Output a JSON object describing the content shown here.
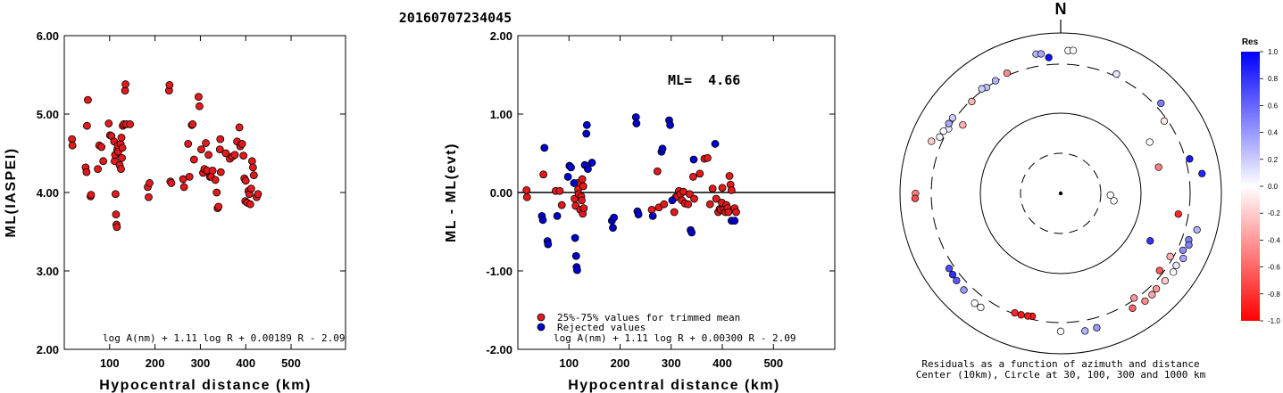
{
  "title": "20160707234045",
  "chart_data": [
    {
      "type": "scatter",
      "xlabel": "Hypocentral distance (km)",
      "ylabel": "ML(IASPEI)",
      "xlim": [
        0,
        620
      ],
      "ylim": [
        2.0,
        6.0
      ],
      "x_ticks": [
        "100",
        "200",
        "300",
        "400",
        "500"
      ],
      "x_tick_values": [
        100,
        200,
        300,
        400,
        500
      ],
      "y_ticks": [
        "2.00",
        "3.00",
        "4.00",
        "5.00",
        "6.00"
      ],
      "y_tick_values": [
        2,
        3,
        4,
        5,
        6
      ],
      "formula": "log A(nm) + 1.11 log R + 0.00189 R - 2.09",
      "marker_color": "#e31a1c",
      "points": [
        [
          17,
          4.68
        ],
        [
          18,
          4.6
        ],
        [
          47,
          4.32
        ],
        [
          49,
          4.26
        ],
        [
          50,
          4.85
        ],
        [
          52,
          5.18
        ],
        [
          58,
          3.95
        ],
        [
          59,
          3.97
        ],
        [
          74,
          4.3
        ],
        [
          77,
          4.6
        ],
        [
          82,
          4.58
        ],
        [
          86,
          4.4
        ],
        [
          98,
          4.88
        ],
        [
          101,
          4.73
        ],
        [
          104,
          4.72
        ],
        [
          110,
          4.65
        ],
        [
          111,
          4.4
        ],
        [
          112,
          4.48
        ],
        [
          113,
          3.98
        ],
        [
          114,
          3.72
        ],
        [
          115,
          3.59
        ],
        [
          116,
          3.56
        ],
        [
          117,
          4.55
        ],
        [
          118,
          4.6
        ],
        [
          119,
          4.52
        ],
        [
          122,
          4.35
        ],
        [
          124,
          4.62
        ],
        [
          125,
          4.3
        ],
        [
          126,
          4.7
        ],
        [
          127,
          4.44
        ],
        [
          128,
          4.57
        ],
        [
          129,
          4.85
        ],
        [
          131,
          4.87
        ],
        [
          134,
          5.3
        ],
        [
          135,
          5.38
        ],
        [
          137,
          4.87
        ],
        [
          145,
          4.87
        ],
        [
          184,
          4.07
        ],
        [
          186,
          3.94
        ],
        [
          188,
          4.12
        ],
        [
          231,
          5.3
        ],
        [
          232,
          5.37
        ],
        [
          234,
          4.14
        ],
        [
          236,
          4.12
        ],
        [
          262,
          4.17
        ],
        [
          264,
          4.07
        ],
        [
          273,
          4.62
        ],
        [
          276,
          4.2
        ],
        [
          281,
          4.86
        ],
        [
          283,
          4.87
        ],
        [
          286,
          4.42
        ],
        [
          296,
          5.22
        ],
        [
          298,
          5.1
        ],
        [
          302,
          4.55
        ],
        [
          306,
          4.25
        ],
        [
          309,
          4.3
        ],
        [
          312,
          4.63
        ],
        [
          315,
          4.28
        ],
        [
          318,
          4.48
        ],
        [
          321,
          4.2
        ],
        [
          324,
          4.2
        ],
        [
          327,
          4.28
        ],
        [
          333,
          4.16
        ],
        [
          336,
          4.0
        ],
        [
          338,
          3.8
        ],
        [
          340,
          3.82
        ],
        [
          343,
          4.55
        ],
        [
          344,
          4.68
        ],
        [
          345,
          4.26
        ],
        [
          356,
          4.5
        ],
        [
          365,
          4.43
        ],
        [
          371,
          4.46
        ],
        [
          376,
          4.48
        ],
        [
          381,
          4.65
        ],
        [
          386,
          4.83
        ],
        [
          388,
          4.59
        ],
        [
          392,
          4.62
        ],
        [
          395,
          4.47
        ],
        [
          397,
          4.18
        ],
        [
          399,
          3.89
        ],
        [
          400,
          4.15
        ],
        [
          403,
          3.87
        ],
        [
          406,
          4.02
        ],
        [
          408,
          3.98
        ],
        [
          410,
          3.85
        ],
        [
          412,
          4.05
        ],
        [
          414,
          4.4
        ],
        [
          416,
          4.32
        ],
        [
          418,
          4.22
        ],
        [
          424,
          3.94
        ],
        [
          427,
          3.98
        ]
      ]
    },
    {
      "type": "scatter",
      "xlabel": "Hypocentral distance (km)",
      "ylabel": "ML - ML(evt)",
      "xlim": [
        0,
        620
      ],
      "ylim": [
        -2.0,
        2.0
      ],
      "x_ticks": [
        "100",
        "200",
        "300",
        "400",
        "500"
      ],
      "x_tick_values": [
        100,
        200,
        300,
        400,
        500
      ],
      "y_ticks": [
        "-2.00",
        "-1.00",
        "0.00",
        "1.00",
        "2.00"
      ],
      "y_tick_values": [
        -2,
        -1,
        0,
        1,
        2
      ],
      "annotation": "ML=  4.66",
      "formula": "log A(nm) + 1.11 log R + 0.00300 R - 2.09",
      "legend": {
        "placement": "bottom-left",
        "entries": [
          {
            "label": "25%-75% values for trimmed mean",
            "color": "#e31a1c"
          },
          {
            "label": "Rejected values",
            "color": "#0000cc"
          }
        ]
      },
      "series": [
        {
          "name": "25%-75% values for trimmed mean",
          "color": "#e31a1c",
          "points": [
            [
              17,
              0.03
            ],
            [
              18,
              -0.06
            ],
            [
              50,
              0.23
            ],
            [
              74,
              0.02
            ],
            [
              82,
              0.02
            ],
            [
              86,
              -0.16
            ],
            [
              111,
              -0.08
            ],
            [
              113,
              -0.17
            ],
            [
              117,
              0.12
            ],
            [
              118,
              0.04
            ],
            [
              119,
              -0.02
            ],
            [
              122,
              -0.22
            ],
            [
              124,
              -0.05
            ],
            [
              125,
              -0.1
            ],
            [
              126,
              0.17
            ],
            [
              127,
              -0.27
            ],
            [
              128,
              0.08
            ],
            [
              129,
              -0.2
            ],
            [
              262,
              -0.22
            ],
            [
              273,
              0.27
            ],
            [
              276,
              -0.19
            ],
            [
              286,
              -0.15
            ],
            [
              306,
              -0.25
            ],
            [
              309,
              -0.06
            ],
            [
              312,
              -0.05
            ],
            [
              315,
              0.02
            ],
            [
              318,
              -0.02
            ],
            [
              321,
              -0.1
            ],
            [
              324,
              0.01
            ],
            [
              327,
              -0.14
            ],
            [
              333,
              -0.15
            ],
            [
              336,
              -0.02
            ],
            [
              343,
              0.2
            ],
            [
              345,
              -0.08
            ],
            [
              356,
              0.24
            ],
            [
              365,
              0.43
            ],
            [
              371,
              0.44
            ],
            [
              376,
              -0.15
            ],
            [
              381,
              0.05
            ],
            [
              388,
              -0.08
            ],
            [
              392,
              -0.25
            ],
            [
              395,
              -0.21
            ],
            [
              397,
              -0.22
            ],
            [
              399,
              -0.13
            ],
            [
              400,
              0.06
            ],
            [
              403,
              -0.21
            ],
            [
              406,
              -0.25
            ],
            [
              408,
              -0.16
            ],
            [
              410,
              -0.2
            ],
            [
              412,
              -0.25
            ],
            [
              414,
              0.21
            ],
            [
              416,
              0.1
            ],
            [
              418,
              0.03
            ],
            [
              424,
              -0.2
            ],
            [
              427,
              -0.25
            ]
          ]
        },
        {
          "name": "Rejected values",
          "color": "#0000cc",
          "points": [
            [
              47,
              -0.3
            ],
            [
              49,
              -0.35
            ],
            [
              52,
              0.57
            ],
            [
              58,
              -0.62
            ],
            [
              59,
              -0.66
            ],
            [
              77,
              -0.3
            ],
            [
              98,
              0.2
            ],
            [
              101,
              0.34
            ],
            [
              104,
              0.32
            ],
            [
              110,
              0.12
            ],
            [
              112,
              -0.58
            ],
            [
              114,
              -0.81
            ],
            [
              115,
              -0.95
            ],
            [
              116,
              -0.99
            ],
            [
              131,
              0.35
            ],
            [
              134,
              0.75
            ],
            [
              135,
              0.86
            ],
            [
              137,
              0.3
            ],
            [
              145,
              0.38
            ],
            [
              184,
              -0.36
            ],
            [
              186,
              -0.45
            ],
            [
              188,
              -0.32
            ],
            [
              231,
              0.96
            ],
            [
              232,
              0.88
            ],
            [
              234,
              -0.24
            ],
            [
              236,
              -0.28
            ],
            [
              264,
              -0.3
            ],
            [
              281,
              0.52
            ],
            [
              283,
              0.56
            ],
            [
              296,
              0.92
            ],
            [
              298,
              0.86
            ],
            [
              302,
              -0.1
            ],
            [
              338,
              -0.48
            ],
            [
              340,
              -0.51
            ],
            [
              344,
              0.42
            ],
            [
              386,
              0.62
            ],
            [
              418,
              -0.36
            ],
            [
              424,
              -0.36
            ]
          ]
        }
      ]
    },
    {
      "type": "polar",
      "north_label": "N",
      "caption_line1": "Residuals as a function of azimuth and distance",
      "caption_line2": "Center (10km), Circle at 30, 100, 300 and 1000 km",
      "colorbar": {
        "title": "Res",
        "tick_labels": [
          "1.0",
          "0.8",
          "0.6",
          "0.4",
          "0.2",
          "0.0",
          "-0.2",
          "-0.4",
          "-0.6",
          "-0.8",
          "-1.0"
        ],
        "tick_values": [
          1.0,
          0.8,
          0.6,
          0.4,
          0.2,
          0.0,
          -0.2,
          -0.4,
          -0.6,
          -0.8,
          -1.0
        ]
      },
      "stations": [
        {
          "az": 350,
          "dist": 480,
          "res": 0.3
        },
        {
          "az": 352,
          "dist": 470,
          "res": 0.35
        },
        {
          "az": 355,
          "dist": 395,
          "res": 0.95
        },
        {
          "az": 3,
          "dist": 510,
          "res": 0.0
        },
        {
          "az": 5,
          "dist": 520,
          "res": 0.0
        },
        {
          "az": 336,
          "dist": 330,
          "res": -0.45
        },
        {
          "az": 330,
          "dist": 310,
          "res": 0.3
        },
        {
          "az": 325,
          "dist": 300,
          "res": 0.25
        },
        {
          "az": 323,
          "dist": 320,
          "res": 0.2
        },
        {
          "az": 316,
          "dist": 290,
          "res": -0.3
        },
        {
          "az": 305,
          "dist": 330,
          "res": 0.2
        },
        {
          "az": 300,
          "dist": 300,
          "res": 0.1
        },
        {
          "az": 302,
          "dist": 330,
          "res": 0.35
        },
        {
          "az": 298,
          "dist": 340,
          "res": 0.0
        },
        {
          "az": 295,
          "dist": 350,
          "res": 0.05
        },
        {
          "az": 292,
          "dist": 440,
          "res": -0.2
        },
        {
          "az": 270,
          "dist": 550,
          "res": -0.5
        },
        {
          "az": 268,
          "dist": 560,
          "res": -0.7
        },
        {
          "az": 305,
          "dist": 240,
          "res": -0.3
        },
        {
          "az": 25,
          "dist": 330,
          "res": 0.1
        },
        {
          "az": 48,
          "dist": 370,
          "res": 0.5
        },
        {
          "az": 55,
          "dist": 280,
          "res": -0.1
        },
        {
          "az": 75,
          "dist": 350,
          "res": 0.9
        },
        {
          "az": 82,
          "dist": 500,
          "res": 0.85
        },
        {
          "az": 92,
          "dist": 40,
          "res": 0.0
        },
        {
          "az": 98,
          "dist": 45,
          "res": 0.0
        },
        {
          "az": 105,
          "dist": 470,
          "res": 0.3
        },
        {
          "az": 110,
          "dist": 390,
          "res": 0.5
        },
        {
          "az": 115,
          "dist": 370,
          "res": 0.45
        },
        {
          "az": 112,
          "dist": 420,
          "res": 0.5
        },
        {
          "az": 118,
          "dist": 430,
          "res": 0.35
        },
        {
          "az": 122,
          "dist": 390,
          "res": 0.1
        },
        {
          "az": 125,
          "dist": 410,
          "res": 0.0
        },
        {
          "az": 130,
          "dist": 390,
          "res": -0.2
        },
        {
          "az": 135,
          "dist": 375,
          "res": -0.4
        },
        {
          "az": 138,
          "dist": 395,
          "res": -0.35
        },
        {
          "az": 142,
          "dist": 400,
          "res": -0.45
        },
        {
          "az": 148,
          "dist": 380,
          "res": -0.6
        },
        {
          "az": 145,
          "dist": 290,
          "res": -0.4
        },
        {
          "az": 165,
          "dist": 440,
          "res": 0.4
        },
        {
          "az": 170,
          "dist": 450,
          "res": 0.3
        },
        {
          "az": 180,
          "dist": 420,
          "res": 0.0
        },
        {
          "az": 120,
          "dist": 280,
          "res": -0.3
        },
        {
          "az": 118,
          "dist": 160,
          "res": 0.8
        },
        {
          "az": 128,
          "dist": 275,
          "res": -0.65
        },
        {
          "az": 100,
          "dist": 240,
          "res": -0.85
        },
        {
          "az": 75,
          "dist": 160,
          "res": -0.5
        },
        {
          "az": 60,
          "dist": 165,
          "res": 0.0
        },
        {
          "az": 193,
          "dist": 280,
          "res": -0.9
        },
        {
          "az": 195,
          "dist": 285,
          "res": -0.9
        },
        {
          "az": 198,
          "dist": 290,
          "res": -0.9
        },
        {
          "az": 201,
          "dist": 292,
          "res": -0.85
        },
        {
          "az": 215,
          "dist": 440,
          "res": 0.0
        },
        {
          "az": 218,
          "dist": 445,
          "res": 0.0
        },
        {
          "az": 225,
          "dist": 400,
          "res": 0.4
        },
        {
          "az": 230,
          "dist": 385,
          "res": 0.65
        },
        {
          "az": 233,
          "dist": 375,
          "res": 0.8
        },
        {
          "az": 236,
          "dist": 365,
          "res": 0.7
        }
      ]
    }
  ]
}
